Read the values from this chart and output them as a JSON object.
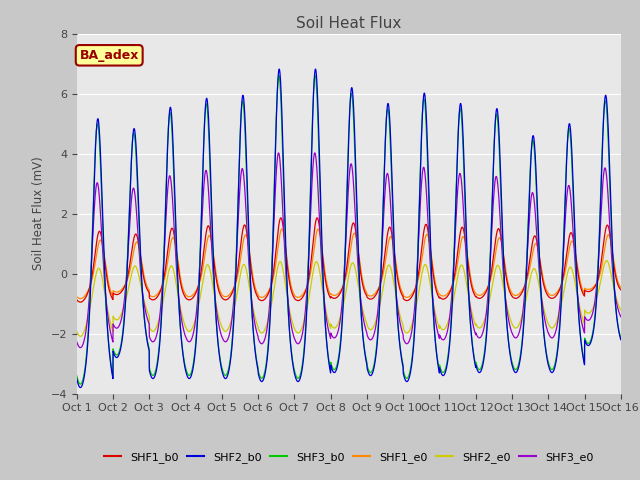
{
  "title": "Soil Heat Flux",
  "ylabel": "Soil Heat Flux (mV)",
  "ylim": [
    -4,
    8
  ],
  "n_days": 15,
  "points_per_day": 288,
  "series": [
    {
      "label": "SHF1_b0",
      "color": "#dd0000",
      "peak_scale": 0.27,
      "trough_scale": 0.25,
      "phase": 0.05
    },
    {
      "label": "SHF2_b0",
      "color": "#0000dd",
      "peak_scale": 1.0,
      "trough_scale": 1.0,
      "phase": 0.0
    },
    {
      "label": "SHF3_b0",
      "color": "#00cc00",
      "peak_scale": 0.97,
      "trough_scale": 0.97,
      "phase": -0.01
    },
    {
      "label": "SHF1_e0",
      "color": "#ff8800",
      "peak_scale": 0.22,
      "trough_scale": 0.22,
      "phase": 0.08
    },
    {
      "label": "SHF2_e0",
      "color": "#cccc00",
      "peak_scale": 0.12,
      "trough_scale": 0.55,
      "phase": 0.03
    },
    {
      "label": "SHF3_e0",
      "color": "#9900cc",
      "peak_scale": 0.6,
      "trough_scale": 0.65,
      "phase": -0.02
    }
  ],
  "day_peaks": [
    6.2,
    5.6,
    6.5,
    6.8,
    6.9,
    7.8,
    7.8,
    7.1,
    6.6,
    7.0,
    6.6,
    6.4,
    5.5,
    5.9,
    6.6
  ],
  "day_troughs": [
    3.8,
    2.8,
    3.5,
    3.5,
    3.5,
    3.6,
    3.6,
    3.3,
    3.4,
    3.6,
    3.4,
    3.3,
    3.3,
    3.3,
    2.4
  ],
  "xtick_labels": [
    "Oct 1",
    "Oct 2",
    "Oct 3",
    "Oct 4",
    "Oct 5",
    "Oct 6",
    "Oct 7",
    "Oct 8",
    "Oct 9",
    "Oct 10",
    "Oct 11",
    "Oct 12",
    "Oct 13",
    "Oct 14",
    "Oct 15",
    "Oct 16"
  ],
  "ytick_vals": [
    -4,
    -2,
    0,
    2,
    4,
    6,
    8
  ],
  "annotation_text": "BA_adex",
  "annotation_bg": "#ffff99",
  "annotation_edge": "#990000",
  "annotation_text_color": "#990000",
  "fig_bg": "#c8c8c8",
  "ax_bg": "#e8e8e8",
  "grid_color": "#ffffff",
  "title_color": "#444444",
  "label_color": "#444444"
}
